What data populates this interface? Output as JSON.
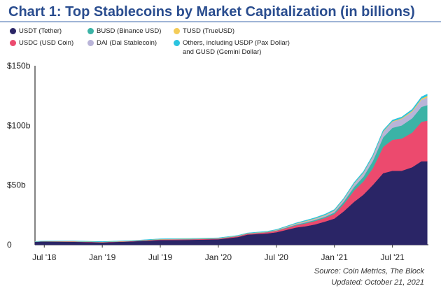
{
  "title": "Chart 1: Top Stablecoins by Market Capitalization (in billions)",
  "legend": [
    {
      "label": "USDT (Tether)",
      "color": "#2a2566"
    },
    {
      "label": "BUSD (Binance USD)",
      "color": "#3bb3a6"
    },
    {
      "label": "TUSD (TrueUSD)",
      "color": "#f4cc58"
    },
    {
      "label": "USDC (USD Coin)",
      "color": "#ec4a6e"
    },
    {
      "label": "DAI (Dai Stablecoin)",
      "color": "#b9b4d8"
    },
    {
      "label": "Others, including USDP (Pax Dollar)",
      "label2": "and GUSD (Gemini Dollar)",
      "color": "#2bc4e0"
    }
  ],
  "source": "Source:  Coin Metrics, The Block",
  "updated": "Updated: October 21, 2021",
  "chart_data": {
    "type": "area",
    "stacked": true,
    "title": "Chart 1: Top Stablecoins by Market Capitalization (in billions)",
    "xlabel": "",
    "ylabel": "",
    "ylim": [
      0,
      150
    ],
    "ytick_values": [
      0,
      50,
      100,
      150
    ],
    "ytick_labels": [
      "0",
      "$50b",
      "$100b",
      "$150b"
    ],
    "xtick_values": [
      2018.5,
      2019.0,
      2019.5,
      2020.0,
      2020.5,
      2021.0,
      2021.5
    ],
    "xtick_labels": [
      "Jul '18",
      "Jan '19",
      "Jul '19",
      "Jan '20",
      "Jul '20",
      "Jan '21",
      "Jul '21"
    ],
    "xlim": [
      2018.42,
      2021.81
    ],
    "x": [
      2018.42,
      2018.5,
      2018.75,
      2019.0,
      2019.25,
      2019.5,
      2019.75,
      2020.0,
      2020.17,
      2020.25,
      2020.42,
      2020.5,
      2020.67,
      2020.75,
      2020.83,
      2020.92,
      2021.0,
      2021.08,
      2021.17,
      2021.25,
      2021.33,
      2021.42,
      2021.5,
      2021.58,
      2021.67,
      2021.75,
      2021.8
    ],
    "series": [
      {
        "name": "USDT (Tether)",
        "color": "#2a2566",
        "values": [
          2.5,
          2.8,
          2.5,
          2.0,
          2.8,
          4.0,
          4.1,
          4.6,
          6.5,
          8.5,
          9.5,
          10.5,
          14.5,
          15.5,
          17,
          19.5,
          22,
          28,
          36,
          42,
          50,
          60,
          62,
          62,
          65,
          70,
          70
        ]
      },
      {
        "name": "USDC (USD Coin)",
        "color": "#ec4a6e",
        "values": [
          0.1,
          0.1,
          0.3,
          0.3,
          0.3,
          0.4,
          0.5,
          0.5,
          0.7,
          0.7,
          1.0,
          1.2,
          1.8,
          2.4,
          2.8,
          3.0,
          3.8,
          6.0,
          9.5,
          11.0,
          14.0,
          22.0,
          26.0,
          27.0,
          29.0,
          33.0,
          34.0
        ]
      },
      {
        "name": "BUSD (Binance USD)",
        "color": "#3bb3a6",
        "values": [
          0.0,
          0.0,
          0.0,
          0.0,
          0.0,
          0.1,
          0.2,
          0.2,
          0.2,
          0.2,
          0.2,
          0.3,
          0.6,
          0.8,
          0.9,
          1.0,
          1.2,
          2.0,
          3.0,
          4.0,
          6.0,
          8.0,
          10.0,
          11.0,
          12.0,
          12.5,
          13.0
        ]
      },
      {
        "name": "DAI (Dai Stablecoin)",
        "color": "#b9b4d8",
        "values": [
          0.0,
          0.0,
          0.0,
          0.0,
          0.0,
          0.1,
          0.1,
          0.1,
          0.1,
          0.1,
          0.1,
          0.3,
          0.7,
          0.8,
          0.9,
          1.1,
          1.4,
          1.8,
          2.5,
          3.0,
          3.5,
          4.5,
          5.0,
          5.5,
          5.5,
          6.0,
          6.5
        ]
      },
      {
        "name": "TUSD (TrueUSD)",
        "color": "#f4cc58",
        "values": [
          0.1,
          0.1,
          0.2,
          0.2,
          0.2,
          0.2,
          0.2,
          0.2,
          0.2,
          0.2,
          0.2,
          0.2,
          0.3,
          0.4,
          0.4,
          0.4,
          0.4,
          0.4,
          0.4,
          0.4,
          0.5,
          0.5,
          0.5,
          0.6,
          0.8,
          1.0,
          1.2
        ]
      },
      {
        "name": "Others, including USDP (Pax Dollar) and GUSD (Gemini Dollar)",
        "color": "#2bc4e0",
        "values": [
          0.1,
          0.1,
          0.2,
          0.2,
          0.2,
          0.2,
          0.2,
          0.2,
          0.2,
          0.2,
          0.3,
          0.3,
          0.4,
          0.5,
          0.6,
          0.7,
          0.8,
          0.8,
          0.9,
          1.0,
          1.0,
          1.0,
          1.0,
          1.0,
          1.2,
          1.5,
          1.5
        ]
      }
    ],
    "grid": false,
    "legend_position": "top"
  }
}
